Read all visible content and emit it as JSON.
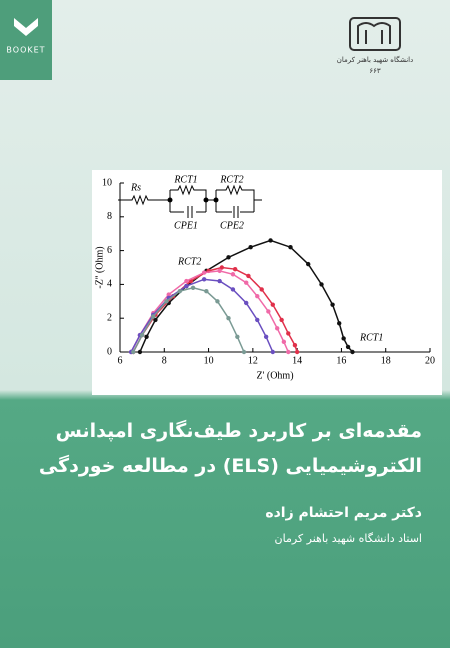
{
  "header": {
    "publisher": "BOOKET",
    "university": "دانشگاه شهید باهنر کرمان",
    "series_number": "۶۶۳"
  },
  "chart_data": {
    "type": "line",
    "xlabel": "Z' (Ohm)",
    "ylabel": "-Z'' (Ohm)",
    "xlim": [
      6,
      20
    ],
    "xticks": [
      6,
      8,
      10,
      12,
      14,
      16,
      18,
      20
    ],
    "ylim": [
      0,
      10
    ],
    "yticks": [
      0,
      2,
      4,
      6,
      8,
      10
    ],
    "circuit_labels": [
      "Rs",
      "RCT1",
      "RCT2",
      "CPE1",
      "CPE2"
    ],
    "annotations": [
      "RCT2",
      "RCT1"
    ],
    "series": [
      {
        "color": "#111111",
        "x": [
          6.9,
          7.2,
          7.6,
          8.2,
          9.0,
          9.9,
          10.9,
          11.9,
          12.8,
          13.7,
          14.5,
          15.1,
          15.6,
          15.9,
          16.1,
          16.3,
          16.5
        ],
        "values": [
          0,
          0.9,
          1.9,
          2.9,
          3.9,
          4.8,
          5.6,
          6.2,
          6.6,
          6.2,
          5.2,
          4.0,
          2.8,
          1.7,
          0.8,
          0.3,
          0
        ]
      },
      {
        "color": "#e0304a",
        "x": [
          6.6,
          7.0,
          7.6,
          8.4,
          9.2,
          10.0,
          10.6,
          11.2,
          11.8,
          12.4,
          12.9,
          13.3,
          13.6,
          13.9,
          14.0
        ],
        "values": [
          0,
          1.0,
          2.2,
          3.3,
          4.2,
          4.8,
          5.0,
          4.9,
          4.5,
          3.7,
          2.8,
          1.9,
          1.1,
          0.4,
          0
        ]
      },
      {
        "color": "#f06aa8",
        "x": [
          6.5,
          6.9,
          7.5,
          8.2,
          9.0,
          9.8,
          10.5,
          11.1,
          11.7,
          12.2,
          12.7,
          13.1,
          13.4,
          13.6
        ],
        "values": [
          0,
          1.0,
          2.3,
          3.4,
          4.2,
          4.7,
          4.8,
          4.6,
          4.1,
          3.3,
          2.4,
          1.4,
          0.6,
          0
        ]
      },
      {
        "color": "#6a4fc0",
        "x": [
          6.5,
          6.9,
          7.5,
          8.2,
          9.0,
          9.8,
          10.5,
          11.1,
          11.7,
          12.2,
          12.6,
          12.9
        ],
        "values": [
          0,
          1.0,
          2.2,
          3.2,
          3.9,
          4.3,
          4.2,
          3.7,
          2.9,
          1.9,
          0.9,
          0
        ]
      },
      {
        "color": "#7a9a94",
        "x": [
          6.6,
          7.0,
          7.5,
          8.1,
          8.7,
          9.3,
          9.9,
          10.4,
          10.9,
          11.3,
          11.6
        ],
        "values": [
          0,
          1.0,
          2.1,
          3.0,
          3.6,
          3.8,
          3.6,
          3.0,
          2.0,
          0.9,
          0
        ]
      }
    ]
  },
  "title_lines": [
    "مقدمه‌ای بر کاربرد طیف‌نگاری امپدانس",
    "الکتروشیمیایی (ELS) در مطالعه خوردگی"
  ],
  "author": "دکتر مریم احتشام زاده",
  "affiliation": "استاد دانشگاه شهید باهنر کرمان"
}
